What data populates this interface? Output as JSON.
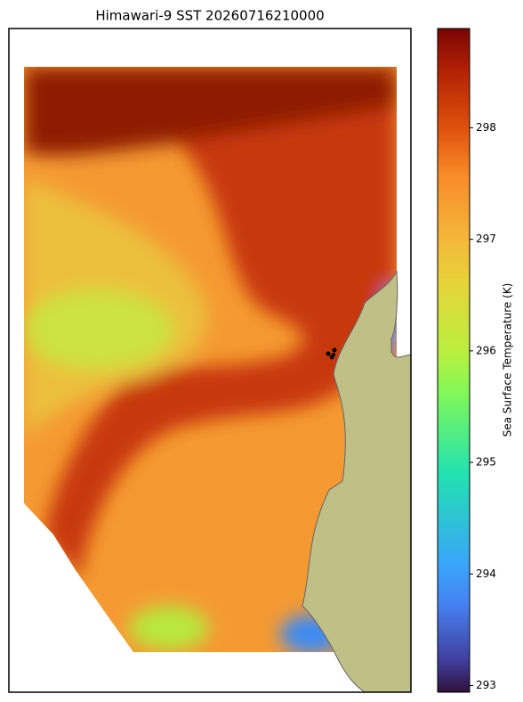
{
  "chart_data": {
    "type": "map",
    "title": "Himawari-9 SST 20260716210000",
    "colorbar_label": "Sea Surface Temperature (K)",
    "clim": [
      292.94,
      298.89
    ],
    "cticks": [
      293,
      294,
      295,
      296,
      297,
      298
    ]
  }
}
